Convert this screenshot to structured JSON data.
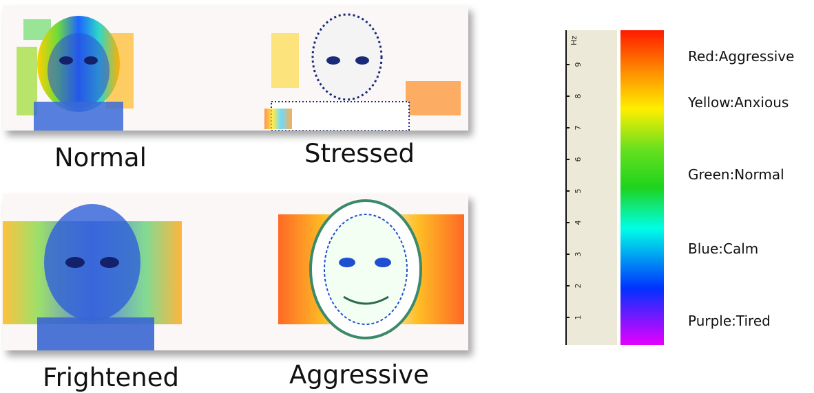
{
  "captions": {
    "normal": "Normal",
    "stressed": "Stressed",
    "frightened": "Frightened",
    "aggressive": "Aggressive"
  },
  "scale": {
    "unit": "Hz",
    "ticks": [
      "1",
      "2",
      "3",
      "4",
      "5",
      "6",
      "7",
      "8",
      "9"
    ],
    "colors": {
      "red": "#ff1a00",
      "orange": "#ff8c00",
      "yellow": "#ffee00",
      "green": "#1ed31e",
      "cyan": "#00ffe6",
      "blue": "#0032ff",
      "purple": "#e600ff",
      "ruler_bg": "#ece9d8"
    }
  },
  "legend": [
    {
      "label": "Red:Aggressive"
    },
    {
      "label": "Yellow:Anxious"
    },
    {
      "label": "Green:Normal"
    },
    {
      "label": "Blue:Calm"
    },
    {
      "label": "Purple:Tired"
    }
  ]
}
